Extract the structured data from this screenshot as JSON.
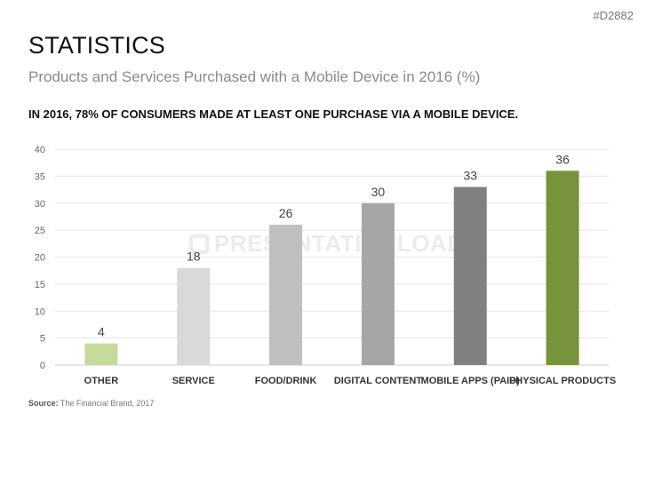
{
  "doc_id": "#D2882",
  "title": "STATISTICS",
  "subtitle": "Products and Services Purchased with a Mobile Device in 2016 (%)",
  "headline": "IN 2016, 78% OF CONSUMERS MADE AT LEAST ONE PURCHASE VIA A MOBILE DEVICE.",
  "watermark": "PRESENTATIONLOAD",
  "source": {
    "label": "Source:",
    "text": "The Financial Brand, 2017"
  },
  "chart_data": {
    "type": "bar",
    "title": "Products and Services Purchased with a Mobile Device in 2016 (%)",
    "xlabel": "",
    "ylabel": "",
    "ylim": [
      0,
      40
    ],
    "yticks": [
      0,
      5,
      10,
      15,
      20,
      25,
      30,
      35,
      40
    ],
    "grid": true,
    "categories": [
      "OTHER",
      "SERVICE",
      "FOOD/DRINK",
      "DIGITAL CONTENT",
      "MOBILE APPS (PAID)",
      "PHYSICAL PRODUCTS"
    ],
    "values": [
      4,
      18,
      26,
      30,
      33,
      36
    ],
    "colors": [
      "#c5db9c",
      "#d9d9d9",
      "#bfbfbf",
      "#a6a6a6",
      "#808080",
      "#77933c"
    ]
  }
}
